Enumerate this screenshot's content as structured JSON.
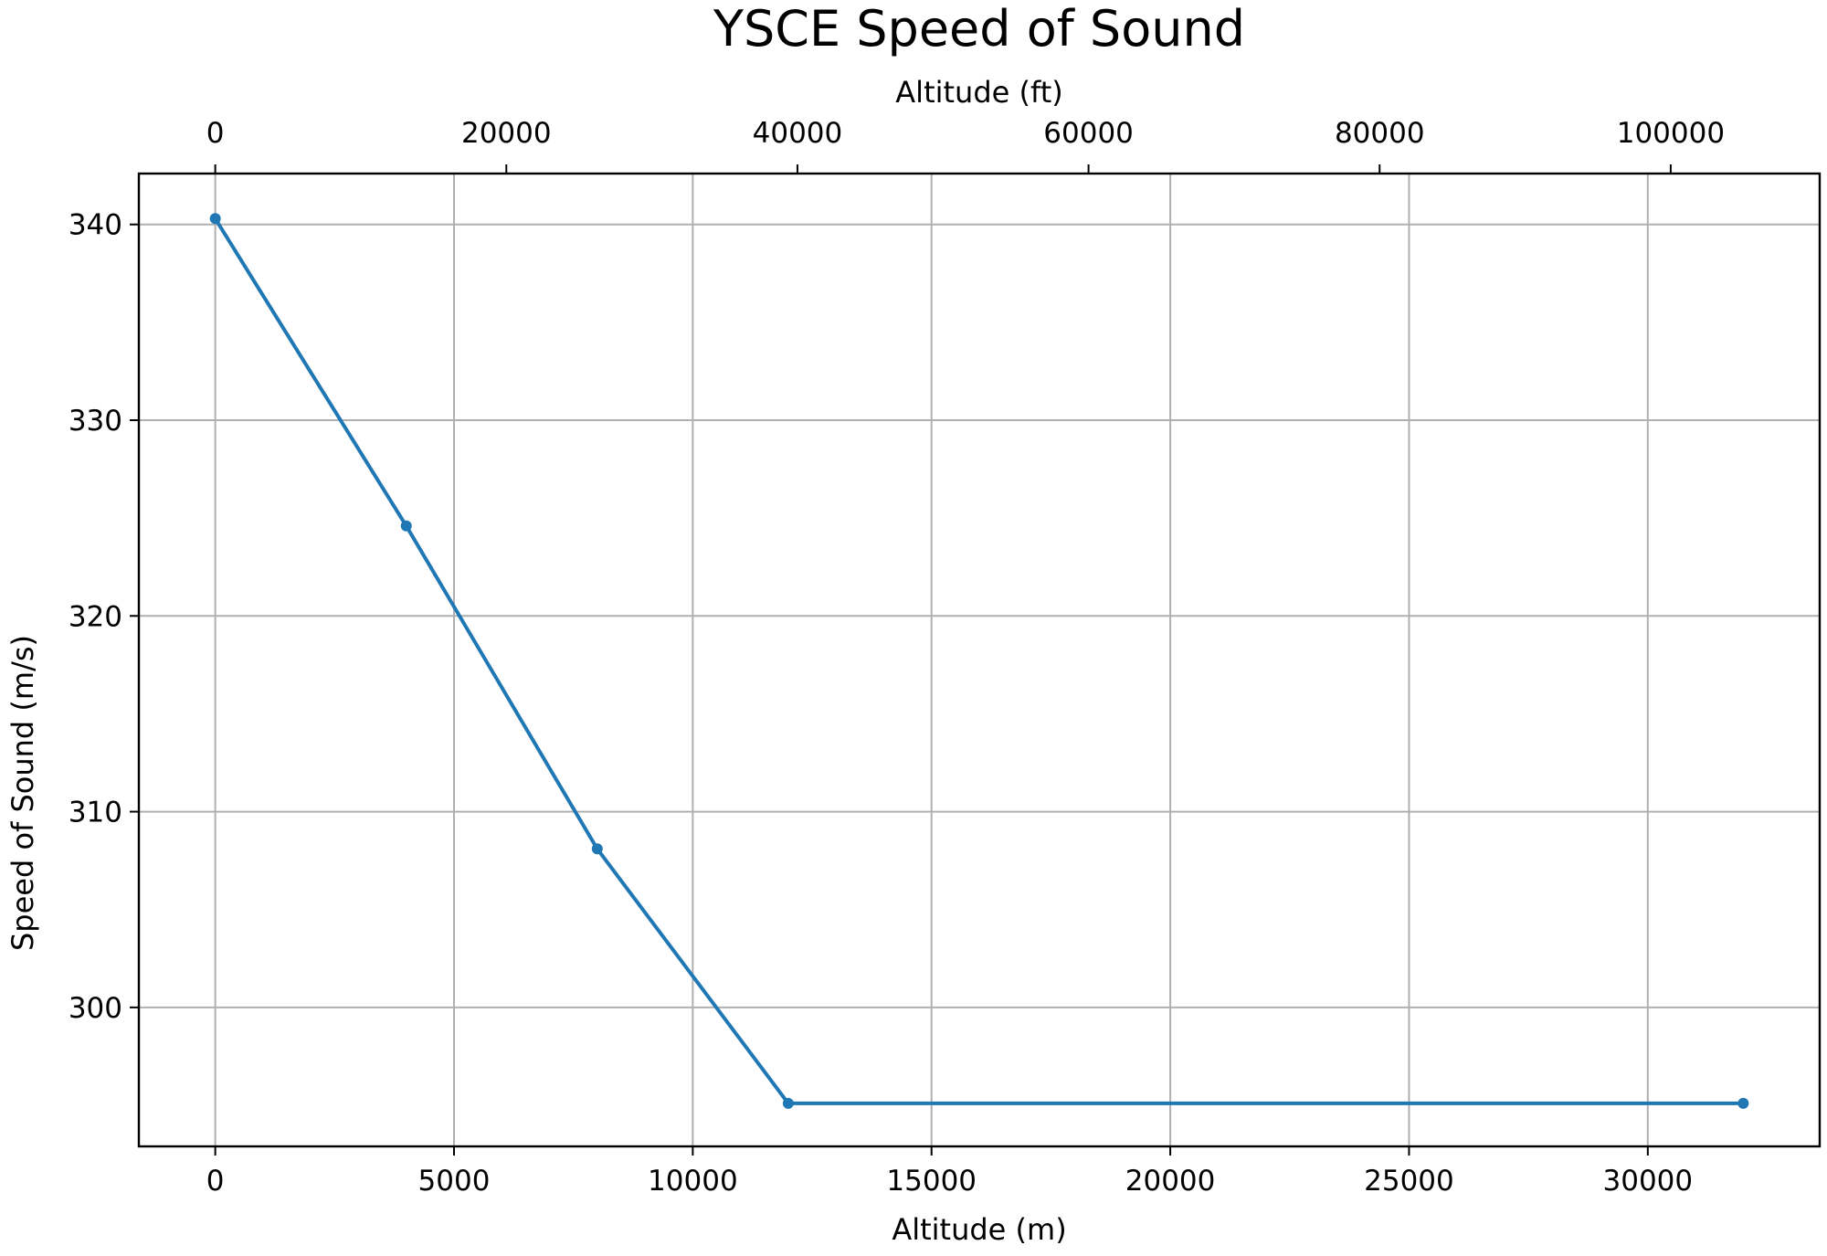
{
  "chart_data": {
    "type": "line",
    "title": "YSCE Speed of Sound",
    "xlabel": "Altitude (m)",
    "x2label": "Altitude (ft)",
    "ylabel": "Speed of Sound (m/s)",
    "x_ticks": [
      "0",
      "5000",
      "10000",
      "15000",
      "20000",
      "25000",
      "30000"
    ],
    "x2_ticks": [
      "0",
      "20000",
      "40000",
      "60000",
      "80000",
      "100000"
    ],
    "y_ticks": [
      "300",
      "310",
      "320",
      "330",
      "340"
    ],
    "xlim": [
      -1600,
      33600
    ],
    "ylim": [
      292.9,
      342.6
    ],
    "grid": true,
    "color": "#1f77b4",
    "series": [
      {
        "x": [
          0,
          4000,
          8000,
          12000,
          32000
        ],
        "y": [
          340.3,
          324.6,
          308.1,
          295.1,
          295.1
        ]
      }
    ]
  }
}
